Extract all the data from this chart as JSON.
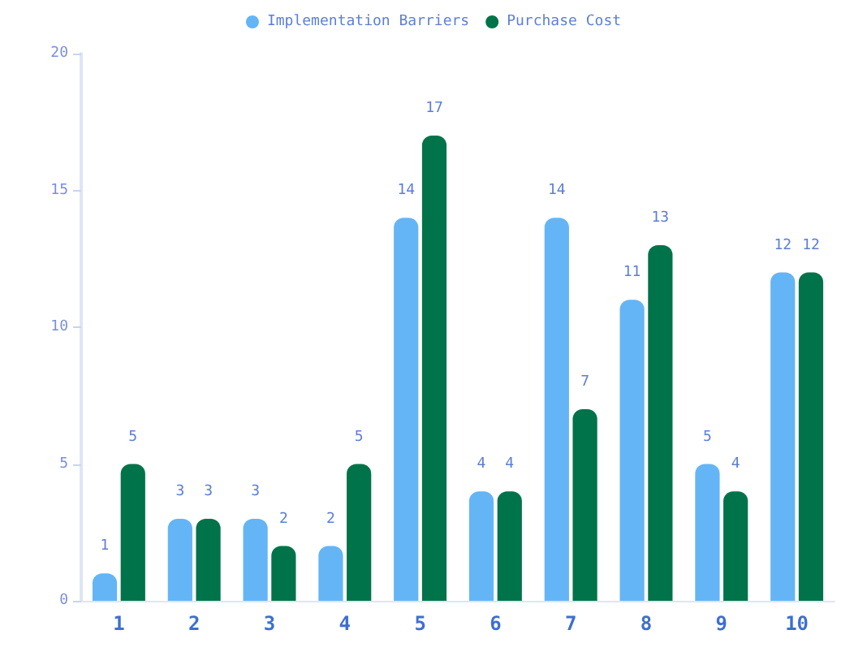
{
  "chart_data": {
    "type": "bar",
    "categories": [
      "1",
      "2",
      "3",
      "4",
      "5",
      "6",
      "7",
      "8",
      "9",
      "10"
    ],
    "series": [
      {
        "name": "Implementation Barriers",
        "color": "#64b5f6",
        "values": [
          1,
          3,
          3,
          2,
          14,
          4,
          14,
          11,
          5,
          12
        ]
      },
      {
        "name": "Purchase Cost",
        "color": "#00734a",
        "values": [
          5,
          3,
          2,
          5,
          17,
          4,
          7,
          13,
          4,
          12
        ]
      }
    ],
    "ylim": [
      0,
      20
    ],
    "yticks": [
      0,
      5,
      10,
      15,
      20
    ],
    "data_labels": true,
    "legend": "top",
    "grid": false
  }
}
